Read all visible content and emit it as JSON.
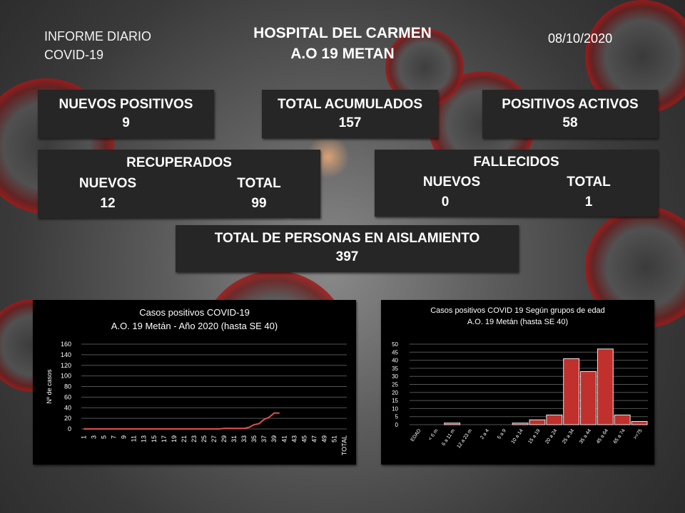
{
  "header": {
    "left_line1": "INFORME DIARIO",
    "left_line2": "COVID-19",
    "title_line1": "HOSPITAL DEL CARMEN",
    "title_line2": "A.O 19 METAN",
    "date": "08/10/2020"
  },
  "stats": {
    "nuevos_positivos": {
      "label": "NUEVOS POSITIVOS",
      "value": "9"
    },
    "total_acumulados": {
      "label": "TOTAL ACUMULADOS",
      "value": "157"
    },
    "positivos_activos": {
      "label": "POSITIVOS ACTIVOS",
      "value": "58"
    },
    "recuperados": {
      "label": "RECUPERADOS",
      "nuevos_label": "NUEVOS",
      "total_label": "TOTAL",
      "nuevos": "12",
      "total": "99"
    },
    "fallecidos": {
      "label": "FALLECIDOS",
      "nuevos_label": "NUEVOS",
      "total_label": "TOTAL",
      "nuevos": "0",
      "total": "1"
    },
    "aislamiento": {
      "label": "TOTAL  DE PERSONAS EN AISLAMIENTO",
      "value": "397"
    }
  },
  "colors": {
    "panel": "#262626",
    "series": "#e0504d",
    "bar": "#c0302c",
    "grid": "#555555"
  },
  "chart_data": [
    {
      "type": "line",
      "title": "Casos positivos COVID-19",
      "subtitle": "A.O. 19 Metán - Año 2020 (hasta SE 40)",
      "ylabel": "Nº de casos",
      "xlabel": "",
      "ylim": [
        0,
        160
      ],
      "yticks": [
        0,
        20,
        40,
        60,
        80,
        100,
        120,
        140,
        160
      ],
      "grid": true,
      "x_tick_labels": [
        "1",
        "3",
        "5",
        "7",
        "9",
        "11",
        "13",
        "15",
        "17",
        "19",
        "21",
        "23",
        "25",
        "27",
        "29",
        "31",
        "33",
        "35",
        "37",
        "39",
        "41",
        "43",
        "45",
        "47",
        "49",
        "51",
        "TOTAL"
      ],
      "x": [
        1,
        2,
        3,
        4,
        5,
        6,
        7,
        8,
        9,
        10,
        11,
        12,
        13,
        14,
        15,
        16,
        17,
        18,
        19,
        20,
        21,
        22,
        23,
        24,
        25,
        26,
        27,
        28,
        29,
        30,
        31,
        32,
        33,
        34,
        35,
        36,
        37,
        38,
        39,
        40
      ],
      "values": [
        0,
        0,
        0,
        0,
        0,
        0,
        0,
        0,
        0,
        0,
        0,
        0,
        0,
        0,
        0,
        0,
        0,
        0,
        0,
        0,
        0,
        0,
        0,
        0,
        0,
        0,
        0,
        0,
        1,
        1,
        1,
        1,
        1,
        3,
        8,
        10,
        18,
        22,
        30,
        30
      ]
    },
    {
      "type": "bar",
      "title": "Casos positivos COVID 19 Según grupos de edad",
      "subtitle": "A.O. 19 Metán (hasta SE 40)",
      "xlabel": "",
      "ylabel": "",
      "ylim": [
        0,
        50
      ],
      "yticks": [
        0,
        5,
        10,
        15,
        20,
        25,
        30,
        35,
        40,
        45,
        50
      ],
      "grid": true,
      "categories": [
        "EDAD",
        "< 6 m",
        "6 a 11 m",
        "12 a 23 m",
        "2 a 4",
        "5 a 9",
        "10 a 14",
        "15 a 19",
        "20 a 24",
        "25 a 34",
        "35 a 44",
        "45 a 64",
        "65 a 74",
        ">=75"
      ],
      "values": [
        0,
        0,
        1,
        0,
        0,
        0,
        1,
        3,
        6,
        41,
        33,
        47,
        6,
        2
      ]
    }
  ]
}
